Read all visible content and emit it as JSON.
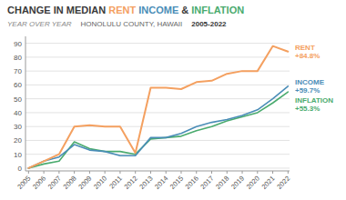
{
  "chart_data": {
    "type": "line",
    "title": "CHANGE IN MEDIAN RENT INCOME & INFLATION",
    "subtitle": "HONOLULU COUNTY, HAWAII",
    "annotations": [
      "YEAR OVER YEAR",
      "2005-2022",
      "+84.8%",
      "+59.7%",
      "+55.3%"
    ],
    "x": [
      2005,
      2006,
      2007,
      2008,
      2009,
      2010,
      2011,
      2012,
      2013,
      2014,
      2015,
      2016,
      2017,
      2018,
      2019,
      2020,
      2021,
      2022
    ],
    "xlim": [
      2004.8,
      2022.1
    ],
    "xticks": [
      2005,
      2006,
      2007,
      2008,
      2009,
      2010,
      2011,
      2012,
      2013,
      2014,
      2015,
      2016,
      2017,
      2018,
      2019,
      2020,
      2021,
      2022
    ],
    "ylim": [
      -2,
      95
    ],
    "yticks": [
      0,
      10,
      20,
      30,
      40,
      50,
      60,
      70,
      80,
      90
    ],
    "grid": true,
    "series": [
      {
        "name": "RENT",
        "color": "#f4a060",
        "values": [
          0,
          5,
          10,
          30,
          31,
          30,
          30,
          11,
          58,
          58,
          57,
          62,
          63,
          68,
          70,
          70,
          88,
          84
        ]
      },
      {
        "name": "INCOME",
        "color": "#4a8db7",
        "values": [
          0,
          5,
          8,
          17,
          13,
          12,
          9,
          9,
          22,
          22,
          25,
          30,
          33,
          35,
          38,
          42,
          50,
          59
        ]
      },
      {
        "name": "INFLATION",
        "color": "#4aab6e",
        "values": [
          0,
          3,
          5,
          19,
          14,
          12,
          12,
          10,
          21,
          22,
          23,
          27,
          30,
          34,
          37,
          40,
          47,
          55
        ]
      }
    ]
  }
}
